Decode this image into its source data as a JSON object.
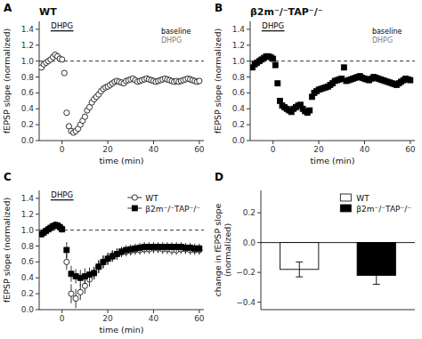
{
  "chart_data": [
    {
      "type": "scatter",
      "title": "WT",
      "xlabel": "time (min)",
      "ylabel": "fEPSP slope (normalized)",
      "xlim": [
        -10,
        62
      ],
      "ylim": [
        0.0,
        1.5
      ],
      "xticks": [
        0,
        20,
        40,
        60
      ],
      "yticks": [
        {
          "value": 0.0,
          "label": "0.0"
        },
        0.2,
        0.4,
        0.6,
        0.8,
        {
          "value": 1.0,
          "label": "1.0"
        },
        1.2,
        1.4
      ],
      "x": [
        -9,
        -8,
        -7,
        -6,
        -5,
        -4,
        -3,
        -2,
        -1,
        0,
        1,
        2,
        3,
        4,
        5,
        6,
        7,
        8,
        9,
        10,
        11,
        12,
        13,
        14,
        15,
        16,
        17,
        18,
        19,
        20,
        21,
        22,
        23,
        24,
        25,
        26,
        27,
        28,
        29,
        30,
        31,
        32,
        33,
        34,
        35,
        36,
        37,
        38,
        39,
        40,
        41,
        42,
        43,
        44,
        45,
        46,
        47,
        48,
        49,
        50,
        51,
        52,
        53,
        54,
        55,
        56,
        57,
        58,
        59,
        60
      ],
      "series": [
        {
          "color": "#ffffff",
          "marker": "circle",
          "values": [
            0.92,
            0.96,
            0.98,
            1.0,
            1.02,
            1.05,
            1.08,
            1.06,
            1.03,
            1.02,
            0.85,
            0.35,
            0.18,
            0.12,
            0.1,
            0.12,
            0.15,
            0.2,
            0.25,
            0.3,
            0.38,
            0.42,
            0.48,
            0.52,
            0.55,
            0.58,
            0.62,
            0.65,
            0.67,
            0.68,
            0.7,
            0.72,
            0.74,
            0.75,
            0.74,
            0.73,
            0.72,
            0.75,
            0.76,
            0.77,
            0.78,
            0.76,
            0.74,
            0.75,
            0.76,
            0.77,
            0.78,
            0.77,
            0.76,
            0.75,
            0.74,
            0.75,
            0.76,
            0.77,
            0.78,
            0.77,
            0.76,
            0.75,
            0.74,
            0.75,
            0.74,
            0.75,
            0.76,
            0.77,
            0.78,
            0.77,
            0.76,
            0.75,
            0.74,
            0.75
          ]
        }
      ],
      "annotations": [
        {
          "type": "panel_label",
          "text": "A"
        },
        {
          "type": "range_bar",
          "text": "DHPG",
          "x": [
            -5,
            5
          ],
          "y": 1.38
        },
        {
          "type": "hline",
          "y": 1.0,
          "line_style": "dashed"
        },
        {
          "type": "inset_label",
          "text": "baseline",
          "color": "#000000"
        },
        {
          "type": "inset_label",
          "text": "DHPG",
          "color": "#808080"
        }
      ]
    },
    {
      "type": "scatter",
      "title": "β2m⁻/⁻TAP⁻/⁻",
      "xlabel": "time (min)",
      "ylabel": "fEPSP slope (normalized)",
      "xlim": [
        -10,
        62
      ],
      "ylim": [
        0.0,
        1.5
      ],
      "xticks": [
        0,
        20,
        40,
        60
      ],
      "yticks": [
        {
          "value": 0.0,
          "label": "0.0"
        },
        0.2,
        0.4,
        0.6,
        0.8,
        {
          "value": 1.0,
          "label": "1.0"
        },
        1.2,
        1.4
      ],
      "x": [
        -9,
        -8,
        -7,
        -6,
        -5,
        -4,
        -3,
        -2,
        -1,
        0,
        1,
        2,
        3,
        4,
        5,
        6,
        7,
        8,
        9,
        10,
        11,
        12,
        13,
        14,
        15,
        16,
        17,
        18,
        19,
        20,
        21,
        22,
        23,
        24,
        25,
        26,
        27,
        28,
        29,
        30,
        31,
        32,
        33,
        34,
        35,
        36,
        37,
        38,
        39,
        40,
        41,
        42,
        43,
        44,
        45,
        46,
        47,
        48,
        49,
        50,
        51,
        52,
        53,
        54,
        55,
        56,
        57,
        58,
        59,
        60
      ],
      "series": [
        {
          "color": "#000000",
          "marker": "square",
          "values": [
            0.92,
            0.96,
            0.98,
            1.0,
            1.02,
            1.04,
            1.06,
            1.06,
            1.05,
            1.03,
            0.95,
            0.72,
            0.5,
            0.44,
            0.42,
            0.4,
            0.38,
            0.36,
            0.4,
            0.42,
            0.44,
            0.45,
            0.4,
            0.37,
            0.35,
            0.38,
            0.55,
            0.6,
            0.62,
            0.64,
            0.65,
            0.66,
            0.67,
            0.68,
            0.7,
            0.72,
            0.75,
            0.76,
            0.77,
            0.78,
            0.92,
            0.75,
            0.76,
            0.77,
            0.78,
            0.79,
            0.8,
            0.81,
            0.79,
            0.78,
            0.77,
            0.76,
            0.78,
            0.8,
            0.79,
            0.78,
            0.77,
            0.76,
            0.75,
            0.74,
            0.73,
            0.72,
            0.71,
            0.7,
            0.72,
            0.74,
            0.76,
            0.78,
            0.77,
            0.76
          ]
        }
      ],
      "annotations": [
        {
          "type": "panel_label",
          "text": "B"
        },
        {
          "type": "range_bar",
          "text": "DHPG",
          "x": [
            -5,
            5
          ],
          "y": 1.38
        },
        {
          "type": "hline",
          "y": 1.0,
          "line_style": "dashed"
        },
        {
          "type": "inset_label",
          "text": "baseline",
          "color": "#000000"
        },
        {
          "type": "inset_label",
          "text": "DHPG",
          "color": "#808080"
        }
      ]
    },
    {
      "type": "scatter",
      "xlabel": "time (min)",
      "ylabel": "fEPSP slope (normalized)",
      "xlim": [
        -10,
        62
      ],
      "ylim": [
        0.0,
        1.5
      ],
      "xticks": [
        0,
        20,
        40,
        60
      ],
      "yticks": [
        {
          "value": 0.0,
          "label": "0.0"
        },
        0.2,
        0.4,
        0.6,
        0.8,
        {
          "value": 1.0,
          "label": "1.0"
        },
        1.2,
        1.4
      ],
      "legend": "upper right",
      "x": [
        -9,
        -8,
        -7,
        -6,
        -5,
        -4,
        -3,
        -2,
        -1,
        0,
        2,
        4,
        6,
        8,
        10,
        12,
        14,
        16,
        18,
        20,
        22,
        24,
        26,
        28,
        30,
        32,
        34,
        36,
        38,
        40,
        42,
        44,
        46,
        48,
        50,
        52,
        54,
        56,
        58,
        60
      ],
      "series": [
        {
          "name": "WT",
          "color": "#ffffff",
          "marker": "circle",
          "values": [
            0.95,
            0.97,
            0.99,
            1.01,
            1.03,
            1.05,
            1.07,
            1.06,
            1.04,
            1.02,
            0.6,
            0.2,
            0.14,
            0.22,
            0.3,
            0.38,
            0.46,
            0.54,
            0.6,
            0.64,
            0.68,
            0.7,
            0.72,
            0.73,
            0.74,
            0.75,
            0.75,
            0.76,
            0.76,
            0.77,
            0.77,
            0.76,
            0.76,
            0.75,
            0.75,
            0.76,
            0.76,
            0.75,
            0.75,
            0.75
          ],
          "errors": [
            0.04,
            0.03,
            0.03,
            0.03,
            0.03,
            0.04,
            0.04,
            0.04,
            0.04,
            0.04,
            0.1,
            0.12,
            0.12,
            0.1,
            0.1,
            0.09,
            0.08,
            0.08,
            0.08,
            0.08,
            0.07,
            0.07,
            0.06,
            0.06,
            0.06,
            0.06,
            0.06,
            0.06,
            0.06,
            0.06,
            0.06,
            0.06,
            0.06,
            0.06,
            0.06,
            0.06,
            0.06,
            0.06,
            0.06,
            0.06
          ]
        },
        {
          "name": "β2m⁻/⁻TAP⁻/⁻",
          "color": "#000000",
          "marker": "square",
          "values": [
            0.95,
            0.97,
            0.99,
            1.01,
            1.03,
            1.05,
            1.06,
            1.06,
            1.04,
            1.01,
            0.75,
            0.45,
            0.42,
            0.4,
            0.42,
            0.44,
            0.46,
            0.54,
            0.6,
            0.64,
            0.67,
            0.7,
            0.73,
            0.75,
            0.76,
            0.77,
            0.78,
            0.79,
            0.79,
            0.79,
            0.79,
            0.79,
            0.79,
            0.79,
            0.79,
            0.79,
            0.78,
            0.78,
            0.77,
            0.77
          ],
          "errors": [
            0.04,
            0.03,
            0.03,
            0.03,
            0.03,
            0.04,
            0.04,
            0.04,
            0.04,
            0.04,
            0.1,
            0.1,
            0.09,
            0.1,
            0.1,
            0.09,
            0.08,
            0.08,
            0.08,
            0.07,
            0.07,
            0.07,
            0.06,
            0.06,
            0.06,
            0.06,
            0.06,
            0.06,
            0.06,
            0.06,
            0.06,
            0.06,
            0.06,
            0.06,
            0.06,
            0.06,
            0.06,
            0.06,
            0.06,
            0.06
          ]
        }
      ],
      "annotations": [
        {
          "type": "panel_label",
          "text": "C"
        },
        {
          "type": "range_bar",
          "text": "DHPG",
          "x": [
            -5,
            5
          ],
          "y": 1.38
        },
        {
          "type": "hline",
          "y": 1.0,
          "line_style": "dashed"
        }
      ]
    },
    {
      "type": "bar",
      "ylabel": "change in fEPSP slope\n(normalized)",
      "ylim": [
        -0.45,
        0.35
      ],
      "yticks": [
        {
          "value": -0.4,
          "label": "−0.4"
        },
        {
          "value": -0.2,
          "label": "−0.2"
        },
        {
          "value": 0.0,
          "label": "0.0"
        },
        0.2
      ],
      "tick_labels": "y",
      "legend": "upper right",
      "categories": [
        null
      ],
      "series": [
        {
          "name": "WT",
          "color": "#ffffff",
          "values": [
            -0.18
          ],
          "errors": [
            0.05
          ]
        },
        {
          "name": "β2m⁻/⁻TAP⁻/⁻",
          "color": "#000000",
          "values": [
            -0.22
          ],
          "errors": [
            0.06
          ]
        }
      ],
      "annotations": [
        {
          "type": "panel_label",
          "text": "D"
        },
        {
          "type": "hline",
          "y": 0.0,
          "line_style": "solid"
        }
      ]
    }
  ]
}
